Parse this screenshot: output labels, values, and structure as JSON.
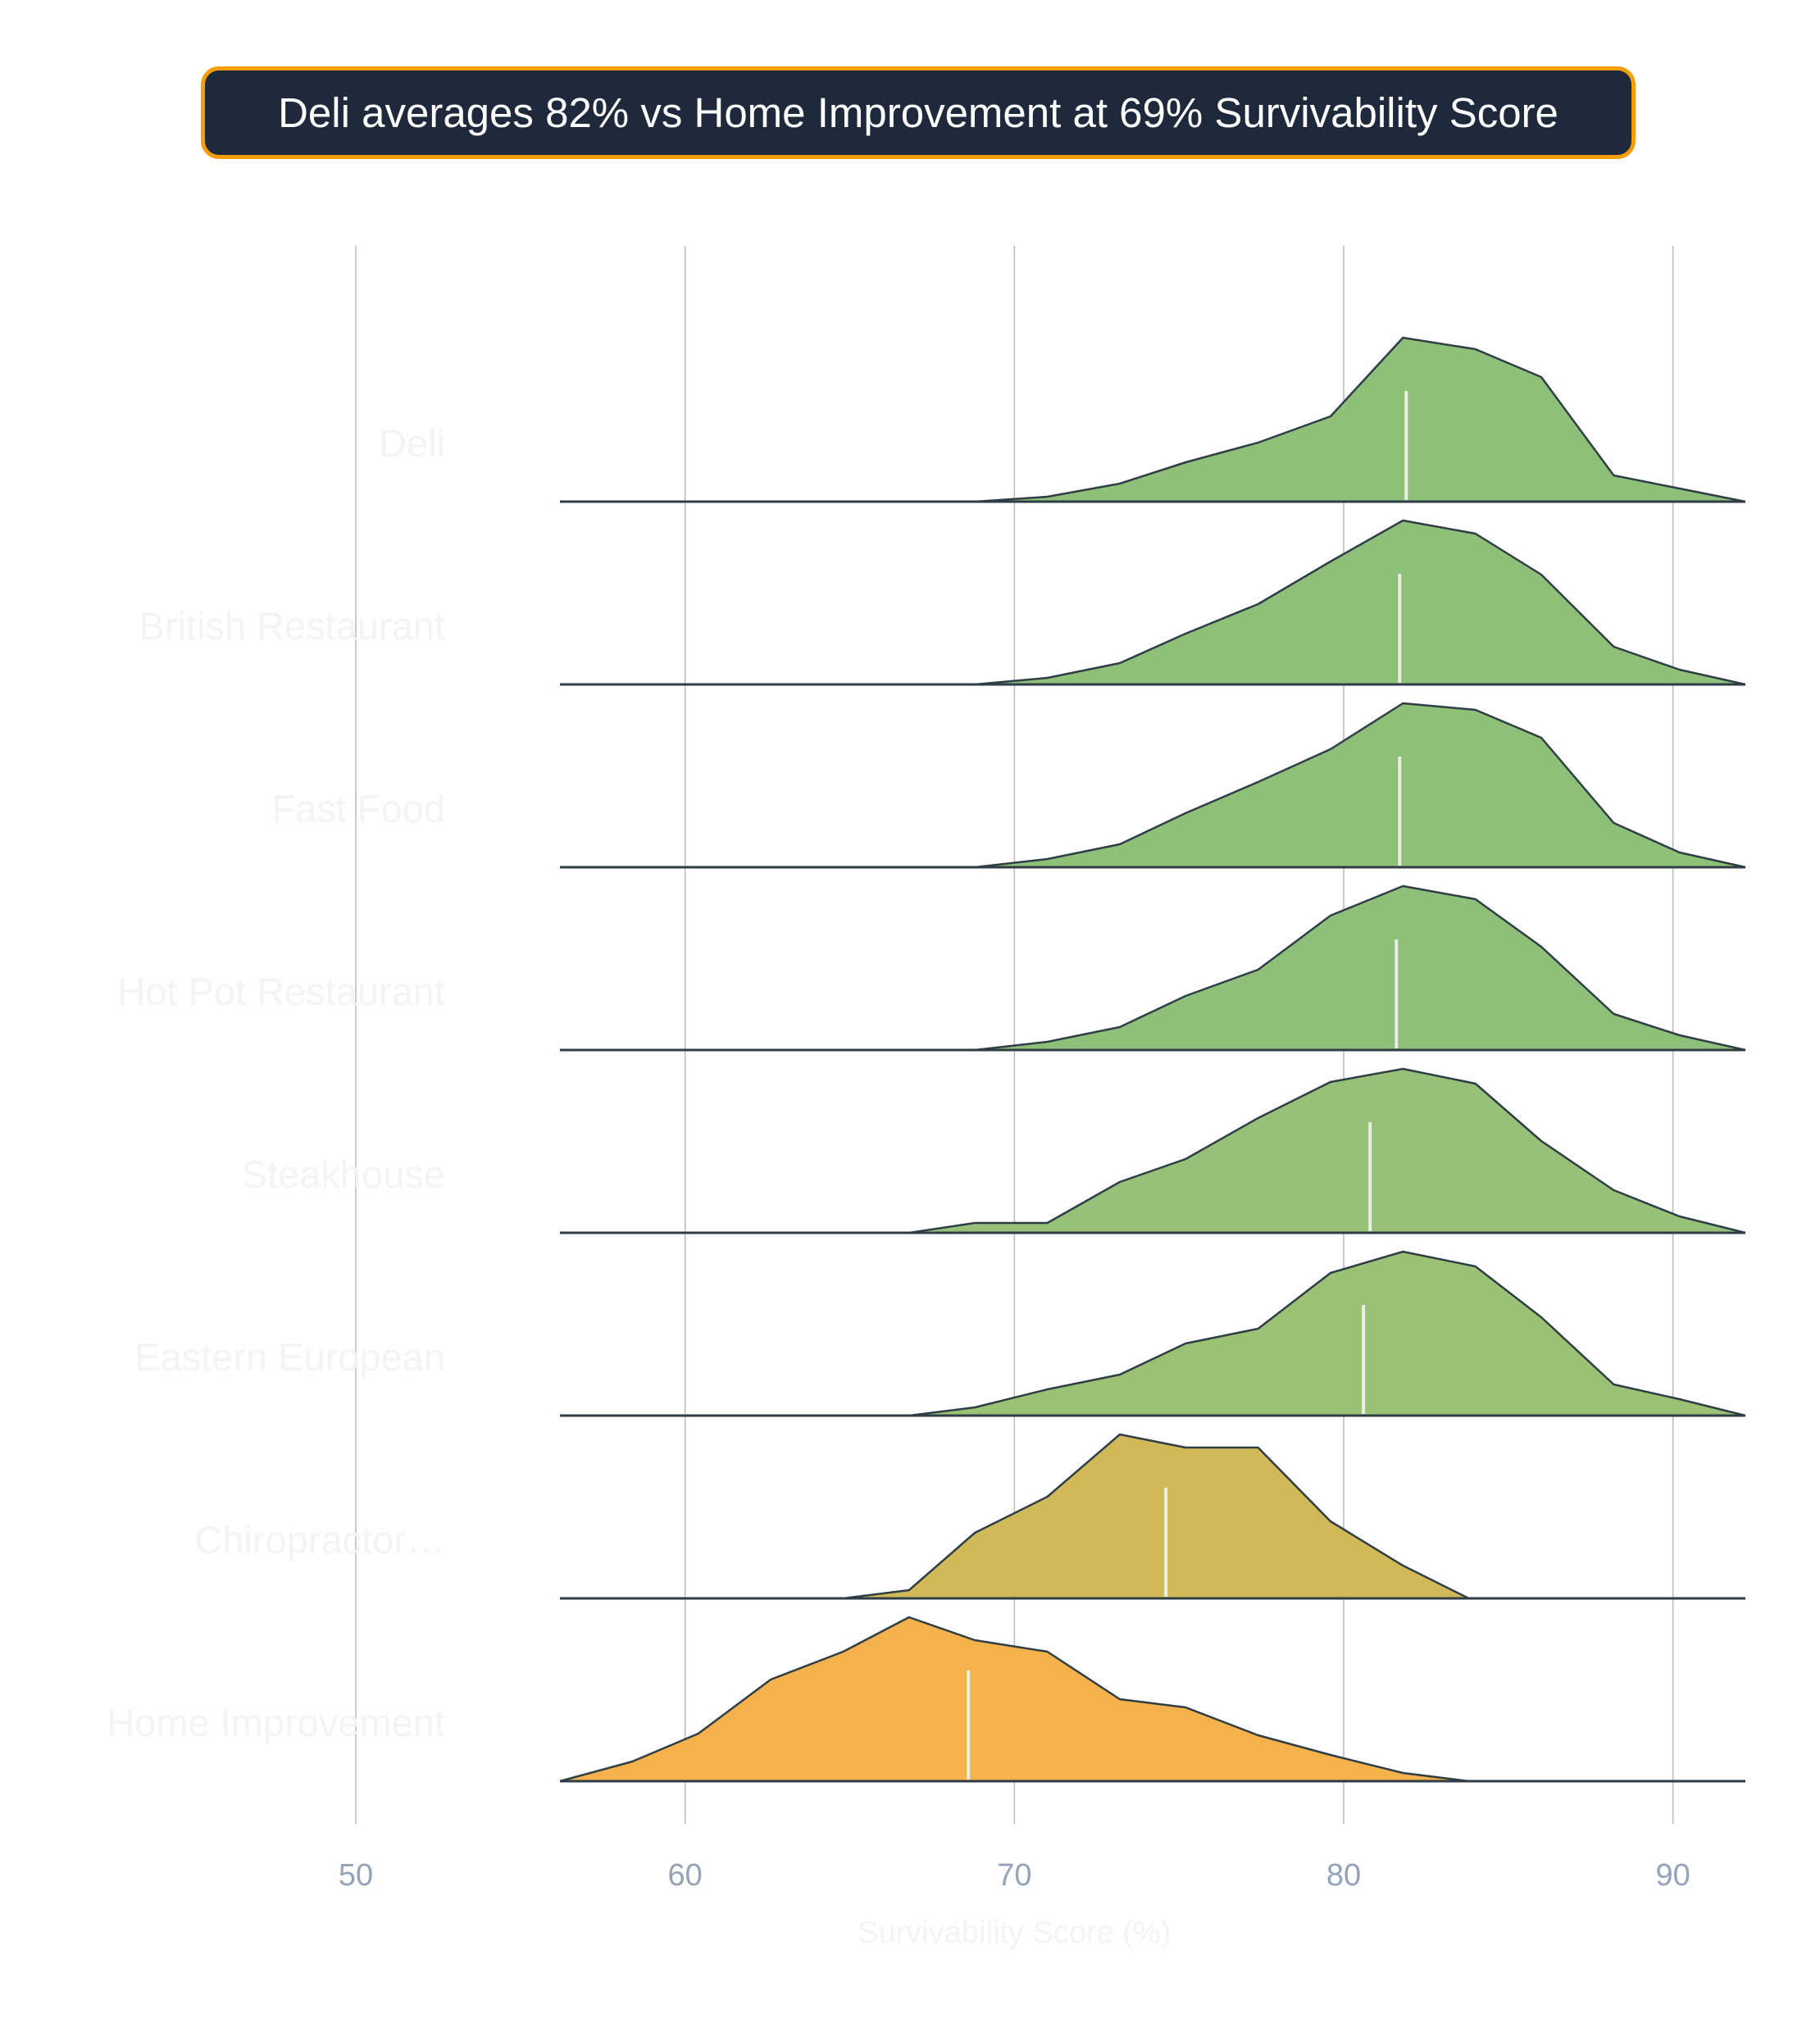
{
  "title": "Deli averages 82% vs Home Improvement at 69% Survivability Score",
  "chart_data": {
    "type": "ridgeline",
    "xlabel": "Survivability Score (%)",
    "xlim": [
      44,
      92
    ],
    "xticks": [
      50,
      60,
      70,
      80,
      90
    ],
    "grid": "vertical",
    "colors": {
      "title_bg": "#1e293b",
      "title_border": "#f59e0b",
      "outline": "#2f3e46",
      "median_line": "#e9efe3"
    },
    "series": [
      {
        "name": "Deli",
        "color": "#8fc07a",
        "median": 81.9,
        "x": [
          56.2,
          68.8,
          71.0,
          73.2,
          75.2,
          77.4,
          79.6,
          81.8,
          84.0,
          86.0,
          88.2,
          90.2,
          92.2
        ],
        "y": [
          0,
          0,
          0.03,
          0.11,
          0.24,
          0.36,
          0.52,
          1.0,
          0.93,
          0.76,
          0.16,
          0.08,
          0
        ]
      },
      {
        "name": "British Restaurant",
        "color": "#8fc07a",
        "median": 81.7,
        "x": [
          56.2,
          68.8,
          71.0,
          73.2,
          75.2,
          77.4,
          79.6,
          81.8,
          84.0,
          86.0,
          88.2,
          90.2,
          92.2
        ],
        "y": [
          0,
          0,
          0.04,
          0.13,
          0.31,
          0.49,
          0.75,
          1.0,
          0.92,
          0.67,
          0.23,
          0.09,
          0
        ]
      },
      {
        "name": "Fast Food",
        "color": "#8fc07a",
        "median": 81.7,
        "x": [
          56.2,
          68.8,
          71.0,
          73.2,
          75.2,
          77.4,
          79.6,
          81.8,
          84.0,
          86.0,
          88.2,
          90.2,
          92.2
        ],
        "y": [
          0,
          0,
          0.05,
          0.14,
          0.33,
          0.52,
          0.72,
          1.0,
          0.96,
          0.79,
          0.27,
          0.09,
          0
        ]
      },
      {
        "name": "Hot Pot Restaurant",
        "color": "#8fc07a",
        "median": 81.6,
        "x": [
          56.2,
          68.8,
          71.0,
          73.2,
          75.2,
          77.4,
          79.6,
          81.8,
          84.0,
          86.0,
          88.2,
          90.2,
          92.2
        ],
        "y": [
          0,
          0,
          0.05,
          0.14,
          0.33,
          0.49,
          0.82,
          1.0,
          0.92,
          0.63,
          0.22,
          0.09,
          0
        ]
      },
      {
        "name": "Steakhouse",
        "color": "#97c178",
        "median": 80.8,
        "x": [
          56.2,
          66.8,
          68.8,
          71.0,
          73.2,
          75.2,
          77.4,
          79.6,
          81.8,
          84.0,
          86.0,
          88.2,
          90.2,
          92.2
        ],
        "y": [
          0,
          0,
          0.06,
          0.06,
          0.31,
          0.45,
          0.7,
          0.92,
          1.0,
          0.91,
          0.56,
          0.26,
          0.1,
          0
        ]
      },
      {
        "name": "Eastern European",
        "color": "#9bc174",
        "median": 80.6,
        "x": [
          56.2,
          66.8,
          68.8,
          71.0,
          73.2,
          75.2,
          77.4,
          79.6,
          81.8,
          84.0,
          86.0,
          88.2,
          90.2,
          92.2
        ],
        "y": [
          0,
          0,
          0.05,
          0.16,
          0.25,
          0.44,
          0.53,
          0.87,
          1.0,
          0.91,
          0.6,
          0.19,
          0.1,
          0
        ]
      },
      {
        "name": "Chiropractor…",
        "color": "#d1b95a",
        "median": 74.6,
        "x": [
          56.2,
          64.8,
          66.8,
          68.8,
          71.0,
          73.2,
          75.2,
          77.4,
          79.6,
          81.8,
          83.8,
          92.2
        ],
        "y": [
          0,
          0,
          0.05,
          0.4,
          0.62,
          1.0,
          0.92,
          0.92,
          0.47,
          0.2,
          0,
          0
        ]
      },
      {
        "name": "Home Improvement",
        "color": "#f5b24c",
        "median": 68.6,
        "x": [
          56.2,
          58.4,
          60.4,
          62.6,
          64.8,
          66.8,
          68.8,
          71.0,
          73.2,
          75.2,
          77.4,
          79.6,
          81.8,
          83.8,
          92.2
        ],
        "y": [
          0,
          0.12,
          0.29,
          0.62,
          0.79,
          1.0,
          0.86,
          0.79,
          0.5,
          0.45,
          0.28,
          0.16,
          0.05,
          0,
          0
        ]
      }
    ]
  }
}
